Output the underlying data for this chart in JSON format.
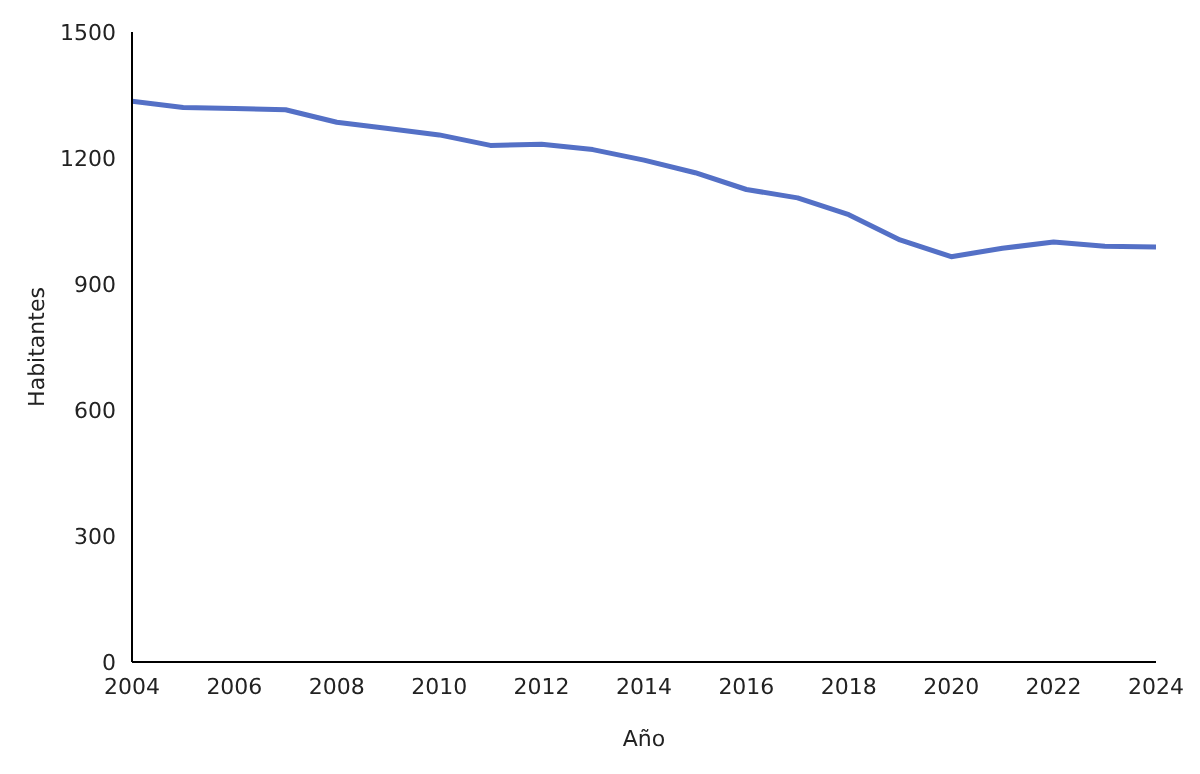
{
  "chart_data": {
    "type": "line",
    "xlabel": "Año",
    "ylabel": "Habitantes",
    "x": [
      2004,
      2005,
      2006,
      2007,
      2008,
      2009,
      2010,
      2011,
      2012,
      2013,
      2014,
      2015,
      2016,
      2017,
      2018,
      2019,
      2020,
      2021,
      2022,
      2023,
      2024
    ],
    "series": [
      {
        "color": "#5470c6",
        "values": [
          1335,
          1320,
          1318,
          1315,
          1285,
          1270,
          1255,
          1230,
          1233,
          1220,
          1195,
          1165,
          1125,
          1105,
          1065,
          1005,
          965,
          985,
          1000,
          990,
          988
        ]
      }
    ],
    "xlim": [
      2004,
      2024
    ],
    "xticks": [
      2004,
      2006,
      2008,
      2010,
      2012,
      2014,
      2016,
      2018,
      2020,
      2022,
      2024
    ],
    "ylim": [
      0,
      1500
    ],
    "yticks": [
      0,
      300,
      600,
      900,
      1200,
      1500
    ],
    "grid": false,
    "legend": false,
    "marker": "none",
    "line_style": "solid"
  }
}
